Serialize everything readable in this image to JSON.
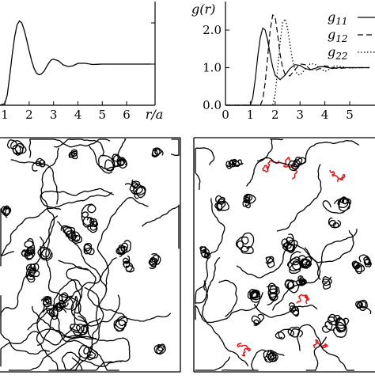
{
  "chart_data": [
    {
      "type": "line",
      "panel": "top-left",
      "xlabel": "r/a",
      "ylabel": "",
      "xlim": [
        0,
        7
      ],
      "ylim": [
        0,
        2.6
      ],
      "xticks": [
        1,
        2,
        3,
        4,
        5,
        6
      ],
      "xtick_labels": [
        "1",
        "2",
        "3",
        "4",
        "5",
        "6"
      ],
      "grid": false,
      "series": [
        {
          "style": "solid",
          "x": [
            0,
            0.5,
            0.8,
            1.0,
            1.1,
            1.2,
            1.3,
            1.4,
            1.5,
            1.6,
            1.7,
            1.8,
            1.9,
            2.0,
            2.1,
            2.2,
            2.3,
            2.4,
            2.5,
            2.6,
            2.7,
            2.8,
            2.9,
            3.0,
            3.2,
            3.4,
            3.6,
            3.8,
            4.0,
            4.3,
            4.6,
            5.0,
            5.5,
            6.0,
            6.5,
            7.0
          ],
          "y": [
            0,
            0,
            0,
            0.04,
            0.25,
            0.7,
            1.2,
            1.65,
            1.95,
            2.05,
            2.0,
            1.82,
            1.58,
            1.32,
            1.08,
            0.9,
            0.78,
            0.74,
            0.76,
            0.82,
            0.92,
            1.02,
            1.1,
            1.12,
            1.08,
            0.98,
            0.94,
            0.96,
            1.02,
            1.02,
            0.99,
            1.0,
            1.0,
            1.0,
            1.0,
            1.0
          ]
        }
      ]
    },
    {
      "type": "line",
      "panel": "top-right",
      "ylabel": "g(r)",
      "xlabel": "",
      "xlim": [
        0,
        5.8
      ],
      "ylim": [
        0,
        2.6
      ],
      "xticks": [
        0,
        1,
        2,
        3,
        4,
        5
      ],
      "xtick_labels": [
        "0",
        "1",
        "2",
        "3",
        "4",
        "5"
      ],
      "yticks": [
        0,
        1,
        2
      ],
      "ytick_labels": [
        "0.0",
        "1.0",
        "2.0"
      ],
      "grid": false,
      "legend_position": "top-right",
      "series": [
        {
          "name": "g11",
          "name_base": "g",
          "name_sub": "11",
          "style": "solid",
          "x": [
            0,
            1.0,
            1.1,
            1.2,
            1.3,
            1.4,
            1.5,
            1.6,
            1.7,
            1.8,
            1.9,
            2.0,
            2.2,
            2.4,
            2.6,
            2.8,
            3.0,
            3.2,
            3.4,
            3.6,
            3.8,
            4.0,
            4.3,
            4.6,
            5.0,
            5.4,
            5.8
          ],
          "y": [
            0,
            0,
            0.2,
            0.7,
            1.3,
            1.8,
            2.05,
            2.0,
            1.72,
            1.35,
            1.02,
            0.8,
            0.68,
            0.8,
            0.98,
            1.08,
            1.06,
            0.98,
            0.94,
            0.98,
            1.03,
            1.02,
            0.98,
            1.0,
            1.0,
            1.0,
            1.0
          ]
        },
        {
          "name": "g12",
          "name_base": "g",
          "name_sub": "12",
          "style": "dashed",
          "x": [
            0,
            1.4,
            1.5,
            1.6,
            1.7,
            1.8,
            1.9,
            2.0,
            2.1,
            2.2,
            2.3,
            2.4,
            2.6,
            2.8,
            3.0,
            3.2,
            3.4,
            3.6,
            3.8,
            4.0,
            4.2,
            4.5,
            5.0,
            5.4,
            5.8
          ],
          "y": [
            0,
            0,
            0.15,
            0.6,
            1.3,
            2.0,
            2.4,
            2.35,
            1.9,
            1.35,
            1.0,
            0.82,
            0.78,
            0.95,
            1.1,
            1.08,
            0.96,
            0.92,
            0.98,
            1.05,
            1.02,
            0.98,
            1.0,
            1.0,
            1.0
          ]
        },
        {
          "name": "g22",
          "name_base": "g",
          "name_sub": "22",
          "style": "dotted",
          "x": [
            0,
            1.9,
            2.0,
            2.1,
            2.2,
            2.3,
            2.4,
            2.5,
            2.6,
            2.7,
            2.8,
            2.9,
            3.0,
            3.2,
            3.4,
            3.6,
            3.8,
            4.0,
            4.2,
            4.4,
            4.7,
            5.0,
            5.4,
            5.8
          ],
          "y": [
            0,
            0,
            0.3,
            0.95,
            1.7,
            2.2,
            2.3,
            2.05,
            1.6,
            1.2,
            0.95,
            0.82,
            0.8,
            0.95,
            1.1,
            1.1,
            0.98,
            0.9,
            0.96,
            1.05,
            1.02,
            0.99,
            1.0,
            1.0
          ]
        }
      ]
    }
  ],
  "trajectory_panels": [
    {
      "name": "bottom-left",
      "clusters": 60,
      "colors": [
        "#000000"
      ]
    },
    {
      "name": "bottom-right",
      "clusters": 50,
      "colors": [
        "#000000",
        "#e31a1c"
      ],
      "red_clusters": 6
    }
  ]
}
